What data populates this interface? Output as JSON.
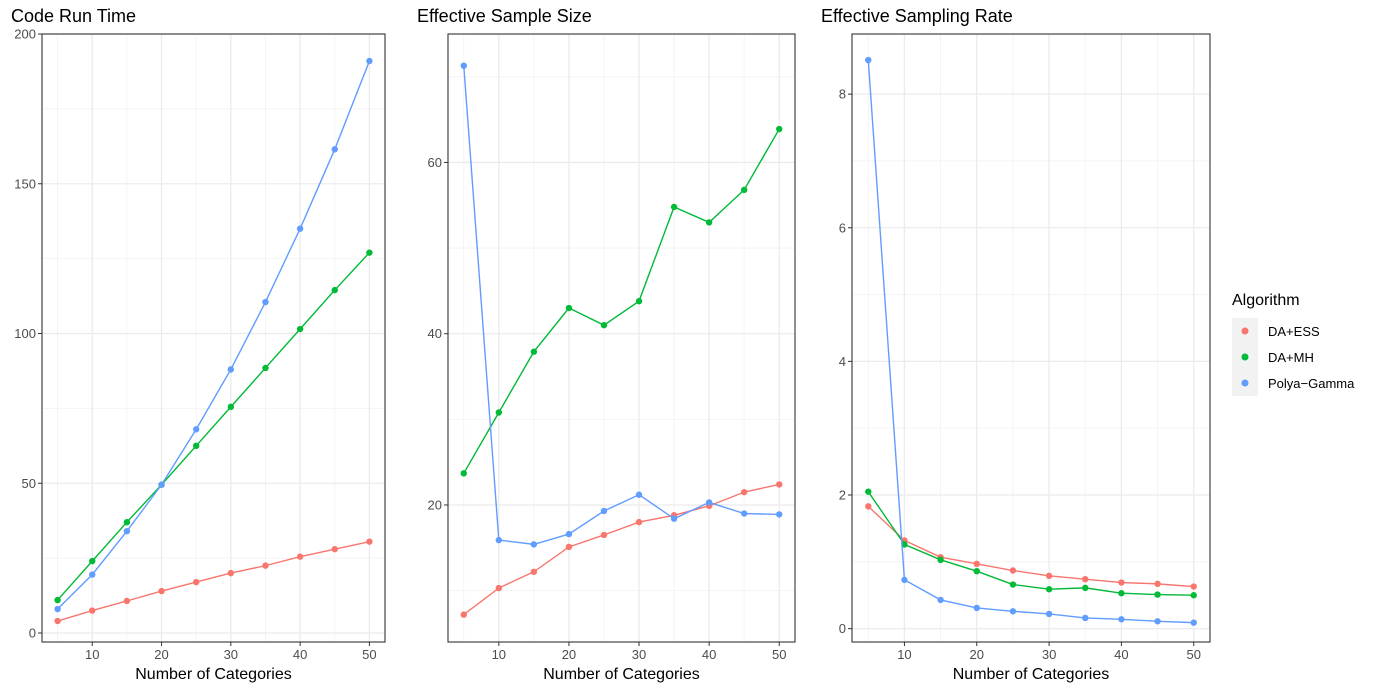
{
  "legend": {
    "title": "Algorithm",
    "items": [
      {
        "name": "DA+ESS",
        "color": "#F8766D"
      },
      {
        "name": "DA+MH",
        "color": "#00BA38"
      },
      {
        "name": "Polya−Gamma",
        "color": "#619CFF"
      }
    ]
  },
  "chart_data": [
    {
      "type": "line",
      "title": "Code Run Time",
      "xlabel": "Number of Categories",
      "ylabel": "",
      "x": [
        5,
        10,
        15,
        20,
        25,
        30,
        35,
        40,
        45,
        50
      ],
      "xlim": [
        2.75,
        52.25
      ],
      "ylim": [
        -3,
        200
      ],
      "xticks": [
        10,
        20,
        30,
        40,
        50
      ],
      "yticks": [
        0,
        50,
        100,
        150,
        200
      ],
      "grid": true,
      "series": [
        {
          "name": "DA+ESS",
          "values": [
            4,
            7.5,
            10.7,
            14,
            17,
            20,
            22.5,
            25.5,
            28,
            30.5
          ]
        },
        {
          "name": "DA+MH",
          "values": [
            11,
            24,
            37,
            49.5,
            62.5,
            75.5,
            88.5,
            101.5,
            114.5,
            127
          ]
        },
        {
          "name": "Polya−Gamma",
          "values": [
            8,
            19.5,
            34,
            49.5,
            68,
            88,
            110.5,
            135,
            161.5,
            191
          ]
        }
      ]
    },
    {
      "type": "line",
      "title": "Effective Sample Size",
      "xlabel": "Number of Categories",
      "ylabel": "",
      "x": [
        5,
        10,
        15,
        20,
        25,
        30,
        35,
        40,
        45,
        50
      ],
      "xlim": [
        2.75,
        52.25
      ],
      "ylim": [
        4,
        75
      ],
      "xticks": [
        10,
        20,
        30,
        40,
        50
      ],
      "yticks": [
        20,
        40,
        60
      ],
      "grid": true,
      "series": [
        {
          "name": "DA+ESS",
          "values": [
            7.2,
            10.3,
            12.2,
            15.1,
            16.5,
            18,
            18.8,
            19.9,
            21.5,
            22.4
          ]
        },
        {
          "name": "DA+MH",
          "values": [
            23.7,
            30.8,
            37.9,
            43,
            41,
            43.8,
            54.8,
            53,
            56.8,
            63.9
          ]
        },
        {
          "name": "Polya−Gamma",
          "values": [
            71.3,
            15.9,
            15.4,
            16.6,
            19.3,
            21.2,
            18.4,
            20.3,
            19,
            18.9
          ]
        }
      ]
    },
    {
      "type": "line",
      "title": "Effective Sampling Rate",
      "xlabel": "Number of Categories",
      "ylabel": "",
      "x": [
        5,
        10,
        15,
        20,
        25,
        30,
        35,
        40,
        45,
        50
      ],
      "xlim": [
        2.75,
        52.25
      ],
      "ylim": [
        -0.2,
        8.9
      ],
      "xticks": [
        10,
        20,
        30,
        40,
        50
      ],
      "yticks": [
        0,
        2,
        4,
        6,
        8
      ],
      "grid": true,
      "series": [
        {
          "name": "DA+ESS",
          "values": [
            1.83,
            1.32,
            1.07,
            0.97,
            0.87,
            0.79,
            0.74,
            0.69,
            0.67,
            0.63
          ]
        },
        {
          "name": "DA+MH",
          "values": [
            2.05,
            1.26,
            1.03,
            0.86,
            0.66,
            0.59,
            0.61,
            0.53,
            0.51,
            0.5
          ]
        },
        {
          "name": "Polya−Gamma",
          "values": [
            8.51,
            0.73,
            0.43,
            0.31,
            0.26,
            0.22,
            0.16,
            0.14,
            0.11,
            0.09
          ]
        }
      ]
    }
  ]
}
